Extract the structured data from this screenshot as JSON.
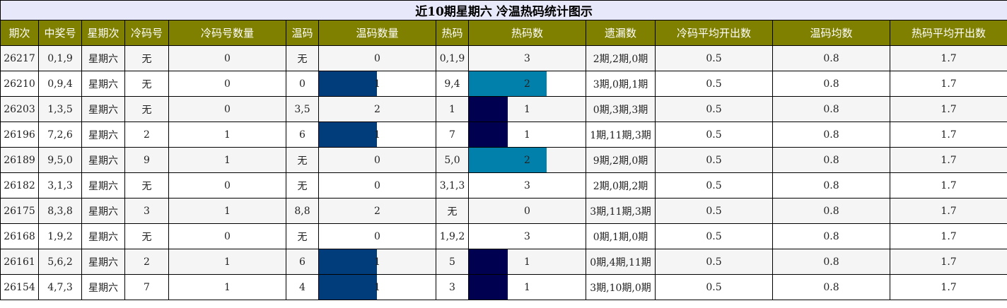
{
  "title": "近10期星期六 冷温热码统计图示",
  "headers": [
    "期次",
    "中奖号",
    "星期次",
    "冷码号",
    "冷码号数量",
    "温码",
    "温码数量",
    "热码",
    "热码数",
    "遗漏数",
    "冷码平均开出数",
    "温码均数",
    "热码平均开出数"
  ],
  "colors": {
    "header_bg": "#808000",
    "title_bg": "#e8e8fb",
    "warm_bar": "#003d7a",
    "hot_bar_1": "#000050",
    "hot_bar_2": "#0080ab"
  },
  "rows": [
    {
      "period": "26217",
      "winning": "0,1,9",
      "weekday": "星期六",
      "cold": "无",
      "cold_count": "0",
      "warm": "无",
      "warm_count": "0",
      "hot": "0,1,9",
      "hot_count": "3",
      "missing": "2期,2期,0期",
      "cold_avg": "0.5",
      "warm_avg": "0.8",
      "hot_avg": "1.7"
    },
    {
      "period": "26210",
      "winning": "0,9,4",
      "weekday": "星期六",
      "cold": "无",
      "cold_count": "0",
      "warm": "0",
      "warm_count": "1",
      "hot": "9,4",
      "hot_count": "2",
      "missing": "3期,0期,1期",
      "cold_avg": "0.5",
      "warm_avg": "0.8",
      "hot_avg": "1.7"
    },
    {
      "period": "26203",
      "winning": "1,3,5",
      "weekday": "星期六",
      "cold": "无",
      "cold_count": "0",
      "warm": "3,5",
      "warm_count": "2",
      "hot": "1",
      "hot_count": "1",
      "missing": "0期,3期,3期",
      "cold_avg": "0.5",
      "warm_avg": "0.8",
      "hot_avg": "1.7"
    },
    {
      "period": "26196",
      "winning": "7,2,6",
      "weekday": "星期六",
      "cold": "2",
      "cold_count": "1",
      "warm": "6",
      "warm_count": "1",
      "hot": "7",
      "hot_count": "1",
      "missing": "1期,11期,3期",
      "cold_avg": "0.5",
      "warm_avg": "0.8",
      "hot_avg": "1.7"
    },
    {
      "period": "26189",
      "winning": "9,5,0",
      "weekday": "星期六",
      "cold": "9",
      "cold_count": "1",
      "warm": "无",
      "warm_count": "0",
      "hot": "5,0",
      "hot_count": "2",
      "missing": "9期,2期,0期",
      "cold_avg": "0.5",
      "warm_avg": "0.8",
      "hot_avg": "1.7"
    },
    {
      "period": "26182",
      "winning": "3,1,3",
      "weekday": "星期六",
      "cold": "无",
      "cold_count": "0",
      "warm": "无",
      "warm_count": "0",
      "hot": "3,1,3",
      "hot_count": "3",
      "missing": "2期,0期,2期",
      "cold_avg": "0.5",
      "warm_avg": "0.8",
      "hot_avg": "1.7"
    },
    {
      "period": "26175",
      "winning": "8,3,8",
      "weekday": "星期六",
      "cold": "3",
      "cold_count": "1",
      "warm": "8,8",
      "warm_count": "2",
      "hot": "无",
      "hot_count": "0",
      "missing": "3期,11期,3期",
      "cold_avg": "0.5",
      "warm_avg": "0.8",
      "hot_avg": "1.7"
    },
    {
      "period": "26168",
      "winning": "1,9,2",
      "weekday": "星期六",
      "cold": "无",
      "cold_count": "0",
      "warm": "无",
      "warm_count": "0",
      "hot": "1,9,2",
      "hot_count": "3",
      "missing": "0期,1期,0期",
      "cold_avg": "0.5",
      "warm_avg": "0.8",
      "hot_avg": "1.7"
    },
    {
      "period": "26161",
      "winning": "5,6,2",
      "weekday": "星期六",
      "cold": "2",
      "cold_count": "1",
      "warm": "6",
      "warm_count": "1",
      "hot": "5",
      "hot_count": "1",
      "missing": "0期,4期,11期",
      "cold_avg": "0.5",
      "warm_avg": "0.8",
      "hot_avg": "1.7"
    },
    {
      "period": "26154",
      "winning": "4,7,3",
      "weekday": "星期六",
      "cold": "7",
      "cold_count": "1",
      "warm": "4",
      "warm_count": "1",
      "hot": "3",
      "hot_count": "1",
      "missing": "3期,10期,0期",
      "cold_avg": "0.5",
      "warm_avg": "0.8",
      "hot_avg": "1.7"
    }
  ]
}
